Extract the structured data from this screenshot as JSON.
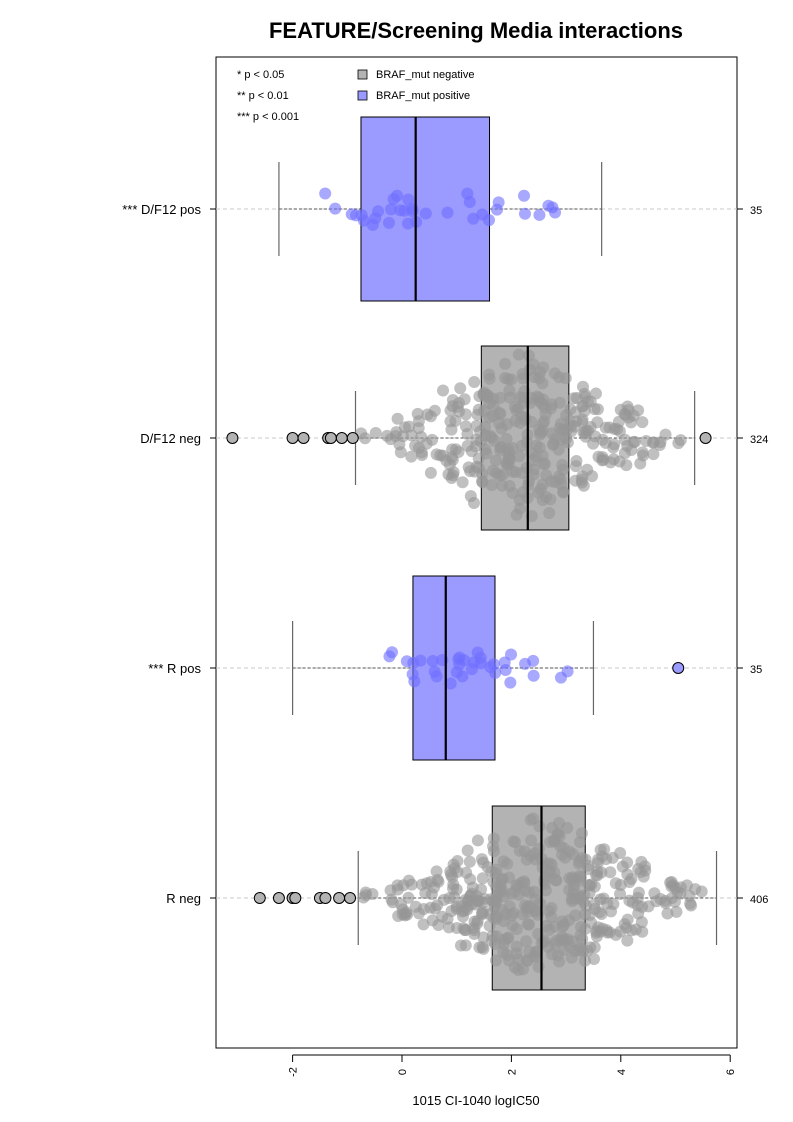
{
  "chart_data": {
    "type": "box",
    "title": "FEATURE/Screening Media interactions",
    "xlabel": "1015 CI-1040 logIC50",
    "ylabel": "",
    "xlim": [
      -3.4,
      6.1
    ],
    "x_ticks": [
      -2,
      0,
      2,
      4,
      6
    ],
    "x_tick_labels": [
      "-2",
      "0",
      "2",
      "4",
      "6"
    ],
    "grid": false,
    "legend_position": "top-left",
    "significance_legend": [
      "* p < 0.05",
      "** p < 0.01",
      "*** p < 0.001"
    ],
    "legend": [
      {
        "name": "BRAF_mut negative",
        "color": "#b3b3b3"
      },
      {
        "name": "BRAF_mut positive",
        "color": "#9a9aff"
      }
    ],
    "groups": [
      {
        "label": "*** D/F12 pos",
        "n": "35",
        "mutation": "positive",
        "whisker_low": -2.25,
        "q1": -0.75,
        "median": 0.25,
        "q3": 1.6,
        "whisker_high": 3.65,
        "n_points": 35,
        "spread": 0.14,
        "outliers": []
      },
      {
        "label": "D/F12 neg",
        "n": "324",
        "mutation": "negative",
        "whisker_low": -0.85,
        "q1": 1.45,
        "median": 2.3,
        "q3": 3.05,
        "whisker_high": 5.35,
        "n_points": 324,
        "spread": 0.45,
        "outliers": [
          -3.1,
          -2.0,
          -1.8,
          -1.35,
          -1.3,
          -1.1,
          -0.9,
          5.55
        ]
      },
      {
        "label": "*** R pos",
        "n": "35",
        "mutation": "positive",
        "whisker_low": -2.0,
        "q1": 0.2,
        "median": 0.8,
        "q3": 1.7,
        "whisker_high": 3.5,
        "n_points": 35,
        "spread": 0.14,
        "outliers": [
          5.05
        ]
      },
      {
        "label": "R neg",
        "n": "406",
        "mutation": "negative",
        "whisker_low": -0.8,
        "q1": 1.65,
        "median": 2.55,
        "q3": 3.35,
        "whisker_high": 5.75,
        "n_points": 406,
        "spread": 0.45,
        "outliers": [
          -2.6,
          -2.25,
          -2.0,
          -1.95,
          -1.5,
          -1.4,
          -1.15,
          -0.95
        ]
      }
    ]
  }
}
